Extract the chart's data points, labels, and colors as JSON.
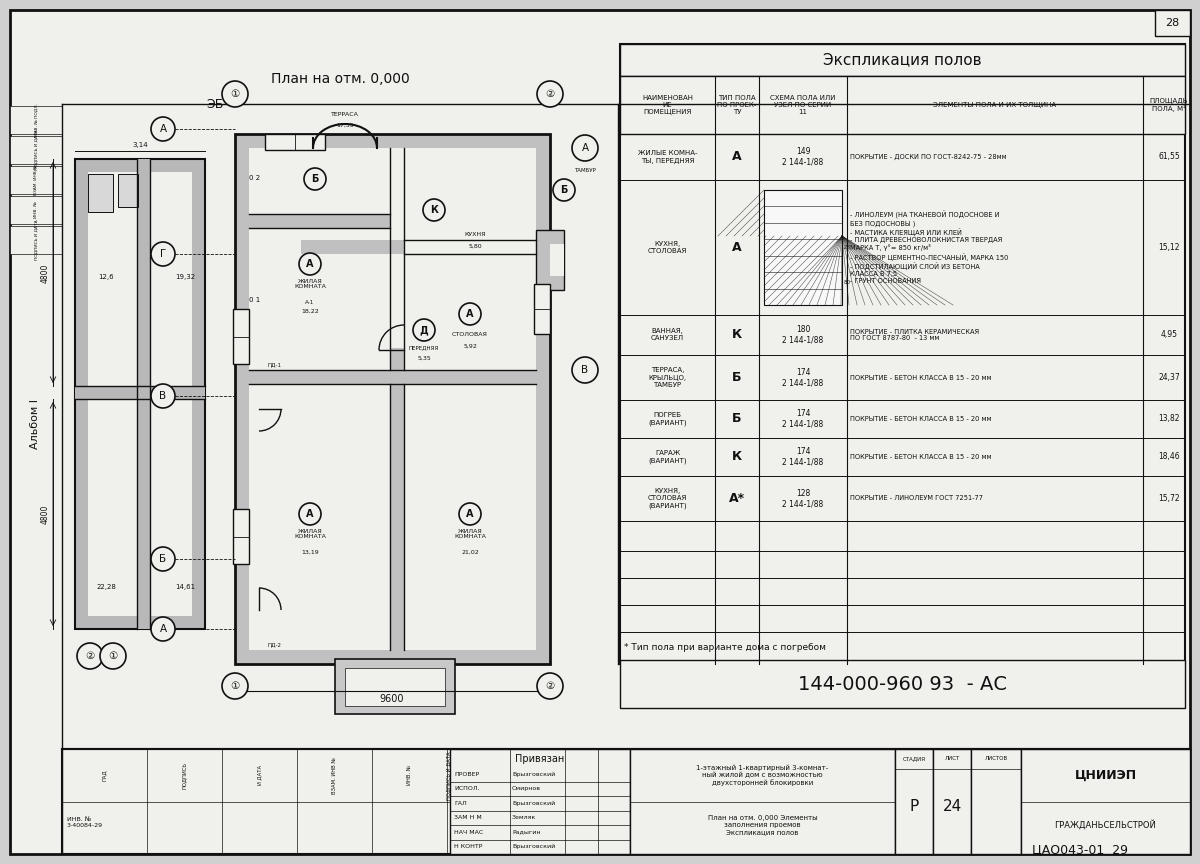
{
  "bg_color": "#d0d0d0",
  "paper_color": "#f0f0ec",
  "line_color": "#111111",
  "title_plan": "План на отм. 0,000",
  "title_table": "Экспликация полов",
  "label_eb": "ЭБ",
  "label_albom": "Альбом I",
  "footer_doc": "ЦАО043-01  29",
  "note": "* Тип пола при варианте дома с погребом",
  "doc_num": "144-000-960 93  - АС",
  "page_num_top": "28",
  "page_num_bot": "29"
}
